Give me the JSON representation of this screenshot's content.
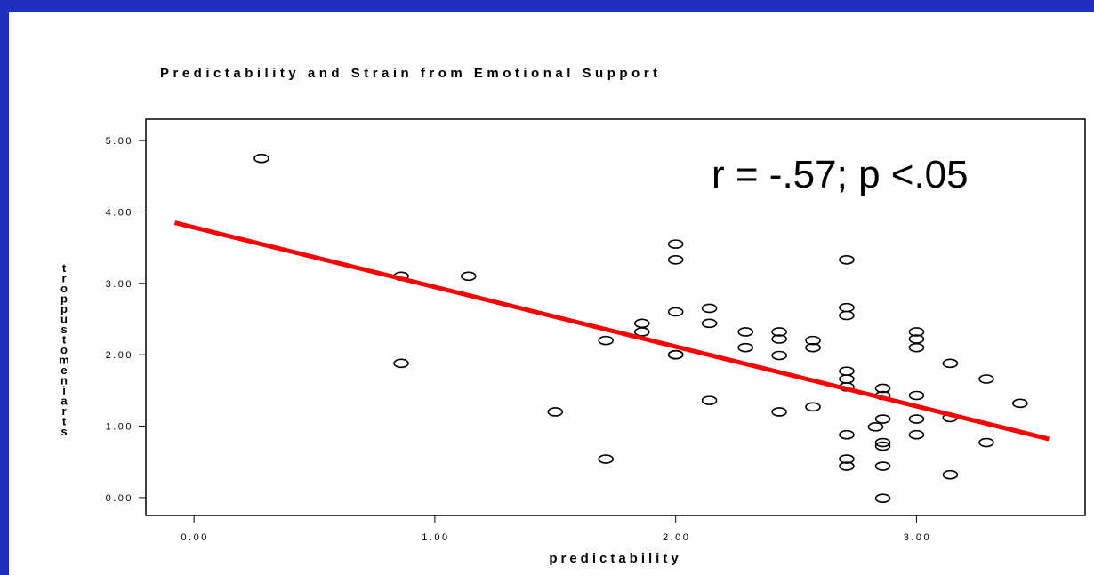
{
  "chart_data": {
    "type": "scatter",
    "title": "Predictability and Strain from Emotional Support",
    "xlabel": "predictability",
    "ylabel": "strainemotsupport",
    "xlim": [
      -0.2,
      3.7
    ],
    "ylim": [
      -0.25,
      5.3
    ],
    "xticks": [
      0,
      1,
      2,
      3
    ],
    "xtick_labels": [
      "0.00",
      "1.00",
      "2.00",
      "3.00"
    ],
    "yticks": [
      0,
      1,
      2,
      3,
      4,
      5
    ],
    "ytick_labels": [
      "0.00",
      "1.00",
      "2.00",
      "3.00",
      "4.00",
      "5.00"
    ],
    "grid": false,
    "annotation": "r = -.57; p <.05",
    "fit_line": {
      "x": [
        -0.08,
        3.55
      ],
      "y": [
        3.85,
        0.82
      ],
      "color": "#ff0000"
    },
    "points": [
      [
        0.28,
        4.75
      ],
      [
        0.86,
        3.1
      ],
      [
        0.86,
        1.88
      ],
      [
        1.14,
        3.1
      ],
      [
        1.5,
        1.2
      ],
      [
        1.71,
        2.2
      ],
      [
        1.71,
        0.54
      ],
      [
        1.86,
        2.44
      ],
      [
        1.86,
        2.32
      ],
      [
        2.0,
        3.55
      ],
      [
        2.0,
        3.33
      ],
      [
        2.0,
        2.6
      ],
      [
        2.0,
        2.0
      ],
      [
        2.0,
        2.0
      ],
      [
        2.14,
        2.65
      ],
      [
        2.14,
        2.44
      ],
      [
        2.14,
        1.36
      ],
      [
        2.29,
        2.32
      ],
      [
        2.29,
        2.1
      ],
      [
        2.43,
        2.32
      ],
      [
        2.43,
        2.22
      ],
      [
        2.43,
        1.99
      ],
      [
        2.43,
        1.2
      ],
      [
        2.57,
        2.2
      ],
      [
        2.57,
        2.1
      ],
      [
        2.57,
        1.27
      ],
      [
        2.71,
        3.33
      ],
      [
        2.71,
        2.66
      ],
      [
        2.71,
        2.55
      ],
      [
        2.71,
        1.77
      ],
      [
        2.71,
        1.66
      ],
      [
        2.71,
        1.55
      ],
      [
        2.71,
        0.88
      ],
      [
        2.71,
        0.54
      ],
      [
        2.71,
        0.44
      ],
      [
        2.86,
        1.53
      ],
      [
        2.86,
        1.43
      ],
      [
        2.86,
        1.1
      ],
      [
        2.83,
        0.99
      ],
      [
        2.86,
        0.77
      ],
      [
        2.86,
        0.72
      ],
      [
        2.86,
        0.44
      ],
      [
        2.86,
        -0.01
      ],
      [
        3.0,
        2.32
      ],
      [
        3.0,
        2.22
      ],
      [
        3.0,
        2.1
      ],
      [
        3.0,
        1.43
      ],
      [
        3.0,
        1.1
      ],
      [
        3.0,
        0.88
      ],
      [
        3.14,
        1.88
      ],
      [
        3.14,
        1.12
      ],
      [
        3.14,
        0.32
      ],
      [
        3.29,
        1.66
      ],
      [
        3.29,
        0.77
      ],
      [
        3.43,
        1.32
      ]
    ]
  }
}
